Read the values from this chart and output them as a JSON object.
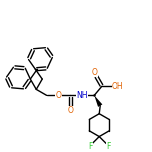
{
  "bg_color": "#ffffff",
  "bond_color": "#000000",
  "atom_colors": {
    "O": "#e06000",
    "N": "#0000cc",
    "F": "#33cc33",
    "C": "#000000"
  },
  "figsize": [
    1.52,
    1.52
  ],
  "dpi": 100,
  "lw": 1.0,
  "fs": 5.5
}
